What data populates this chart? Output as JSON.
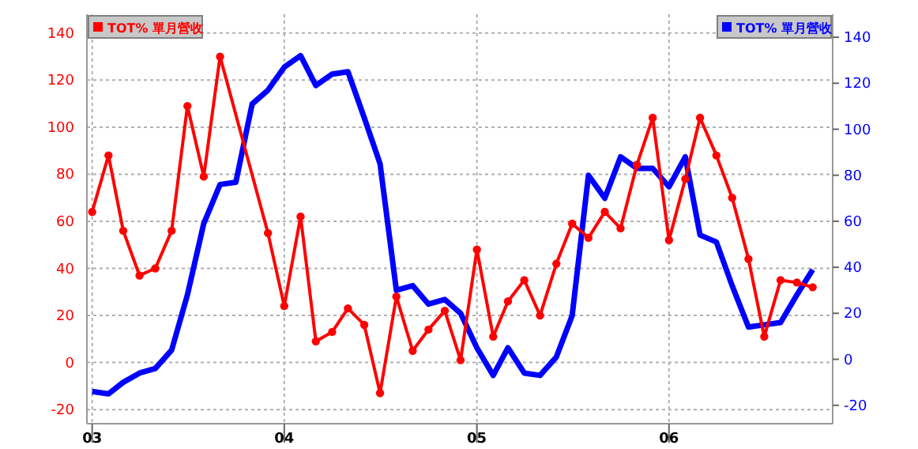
{
  "chart_data": {
    "type": "line",
    "xlim": [
      "2002-12-22",
      "2006-11-08"
    ],
    "xticks": [
      {
        "value": "2003-01",
        "label": "03"
      },
      {
        "value": "2004-01",
        "label": "04"
      },
      {
        "value": "2005-01",
        "label": "05"
      },
      {
        "value": "2006-01",
        "label": "06"
      }
    ],
    "ylim": [
      -26,
      148
    ],
    "yticks": [
      -20,
      0,
      20,
      40,
      60,
      80,
      100,
      120,
      140
    ],
    "y2lim": [
      -28,
      150
    ],
    "y2ticks": [
      -20,
      0,
      20,
      40,
      60,
      80,
      100,
      120,
      140
    ],
    "grid": true,
    "legend": "top",
    "series": [
      {
        "name": "TOT% 單月營收",
        "color": "#ff0000",
        "marker": "circle",
        "x": [
          "2003-01",
          "2003-02",
          "2003-03",
          "2003-04",
          "2003-05",
          "2003-06",
          "2003-07",
          "2003-08",
          "2003-09",
          "2003-12",
          "2004-01",
          "2004-02",
          "2004-03",
          "2004-04",
          "2004-05",
          "2004-06",
          "2004-07",
          "2004-08",
          "2004-09",
          "2004-10",
          "2004-11",
          "2004-12",
          "2005-01",
          "2005-02",
          "2005-03",
          "2005-04",
          "2005-05",
          "2005-06",
          "2005-07",
          "2005-08",
          "2005-09",
          "2005-10",
          "2005-11",
          "2005-12",
          "2006-01",
          "2006-02",
          "2006-03",
          "2006-04",
          "2006-05",
          "2006-06",
          "2006-07",
          "2006-08",
          "2006-09",
          "2006-10"
        ],
        "values": [
          64,
          88,
          56,
          37,
          40,
          56,
          109,
          79,
          130,
          55,
          24,
          62,
          9,
          13,
          23,
          16,
          -13,
          28,
          5,
          14,
          22,
          1,
          48,
          11,
          26,
          35,
          20,
          42,
          59,
          53,
          64,
          57,
          84,
          104,
          52,
          78,
          104,
          88,
          70,
          44,
          11,
          35,
          34,
          32
        ]
      },
      {
        "name": "TOT% 單月營收",
        "color": "#0000ff",
        "axis": "y2",
        "marker": "none",
        "x": [
          "2003-01",
          "2003-02",
          "2003-03",
          "2003-04",
          "2003-05",
          "2003-06",
          "2003-07",
          "2003-08",
          "2003-09",
          "2003-10",
          "2003-11",
          "2003-12",
          "2004-01",
          "2004-02",
          "2004-03",
          "2004-04",
          "2004-05",
          "2004-06",
          "2004-07",
          "2004-08",
          "2004-09",
          "2004-10",
          "2004-11",
          "2004-12",
          "2005-01",
          "2005-02",
          "2005-03",
          "2005-04",
          "2005-05",
          "2005-06",
          "2005-07",
          "2005-08",
          "2005-09",
          "2005-10",
          "2005-11",
          "2005-12",
          "2006-01",
          "2006-02",
          "2006-03",
          "2006-04",
          "2006-05",
          "2006-06",
          "2006-07",
          "2006-08",
          "2006-09",
          "2006-10"
        ],
        "values": [
          -14,
          -15,
          -10,
          -6,
          -4,
          4,
          28,
          59,
          76,
          77,
          111,
          117,
          127,
          132,
          119,
          124,
          125,
          105,
          85,
          30,
          32,
          24,
          26,
          20,
          5,
          -7,
          5,
          -6,
          -7,
          1,
          19,
          80,
          70,
          88,
          83,
          83,
          75,
          88,
          54,
          51,
          32,
          14,
          15,
          16,
          28,
          39
        ]
      }
    ]
  }
}
